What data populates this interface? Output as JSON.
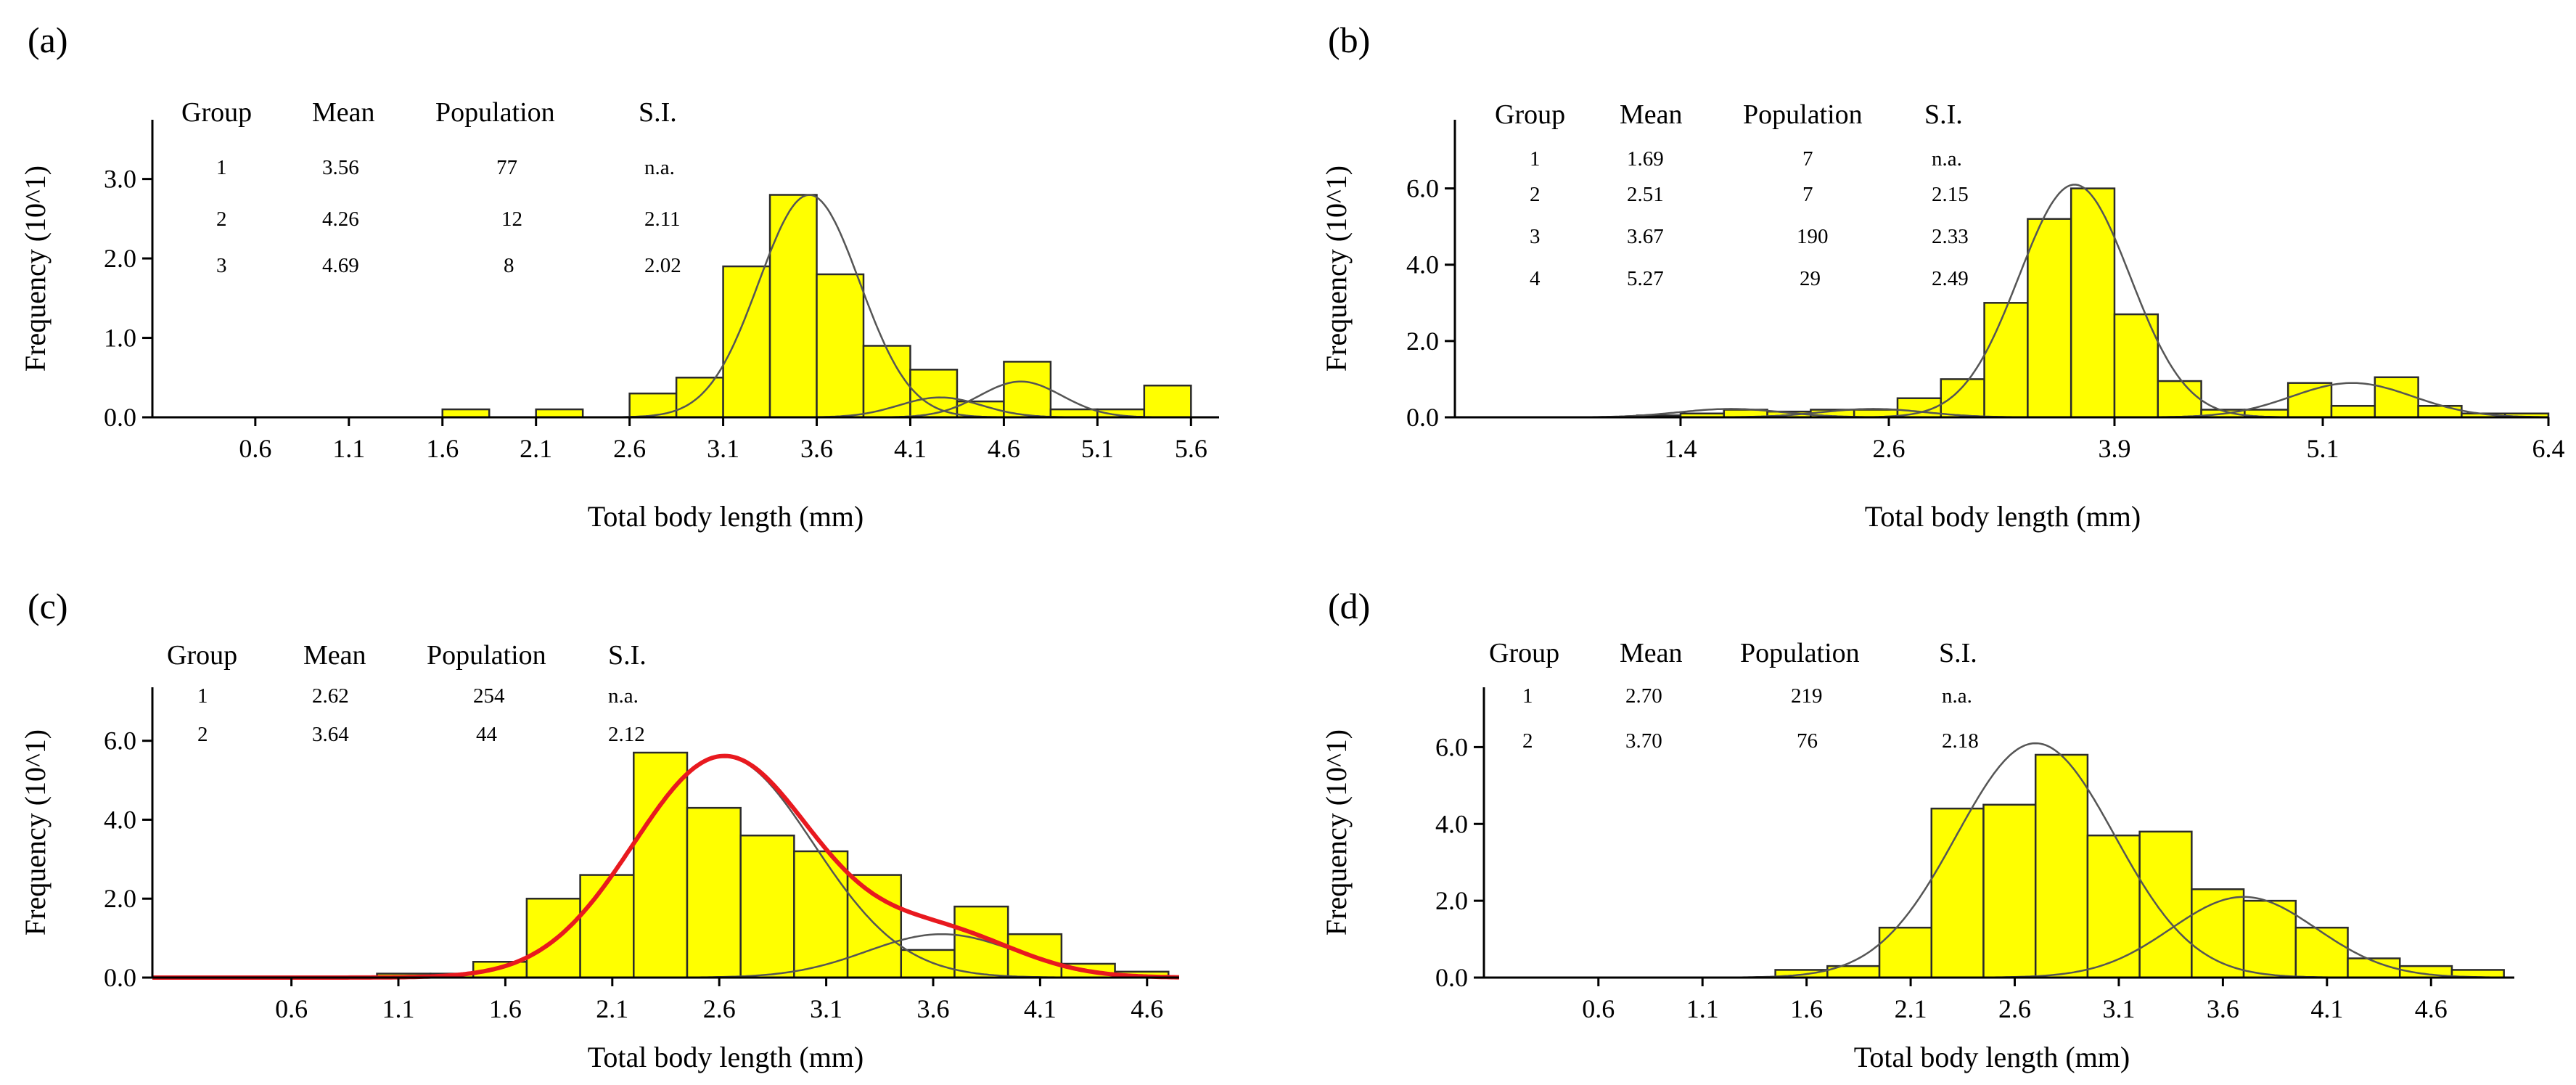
{
  "chart_data": [
    {
      "panel": "(a)",
      "type": "bar",
      "xlabel": "Total body length (mm)",
      "ylabel": "Frequency (10^1)",
      "xlim": [
        0.05,
        5.75
      ],
      "ylim": [
        0,
        3.7
      ],
      "x_ticks": [
        0.6,
        1.1,
        1.6,
        2.1,
        2.6,
        3.1,
        3.6,
        4.1,
        4.6,
        5.1,
        5.6
      ],
      "x_tick_labels": [
        "0.6",
        "1.1",
        "1.6",
        "2.1",
        "2.6",
        "3.1",
        "3.6",
        "4.1",
        "4.6",
        "5.1",
        "5.6"
      ],
      "y_ticks": [
        0,
        1,
        2,
        3
      ],
      "y_tick_labels": [
        "0.0",
        "1.0",
        "2.0",
        "3.0"
      ],
      "bin_width": 0.25,
      "bin_starts": [
        1.6,
        2.1,
        2.6,
        2.85,
        3.1,
        3.35,
        3.6,
        3.85,
        4.1,
        4.35,
        4.6,
        4.85,
        5.1,
        5.35
      ],
      "values": [
        0.1,
        0.1,
        0.3,
        0.5,
        1.9,
        2.8,
        1.8,
        0.9,
        0.6,
        0.2,
        0.7,
        0.1,
        0.1,
        0.4
      ],
      "table": {
        "headers": [
          "Group",
          "Mean",
          "Population",
          "S.I."
        ],
        "rows": [
          [
            "1",
            "3.56",
            "77",
            "n.a."
          ],
          [
            "2",
            "4.26",
            "12",
            "2.11"
          ],
          [
            "3",
            "4.69",
            "8",
            "2.02"
          ]
        ]
      },
      "components": [
        {
          "mean": 3.56,
          "sd": 0.27,
          "peak": 2.8,
          "color": "#555555"
        },
        {
          "mean": 4.26,
          "sd": 0.22,
          "peak": 0.25,
          "color": "#555555"
        },
        {
          "mean": 4.69,
          "sd": 0.22,
          "peak": 0.45,
          "color": "#555555"
        }
      ]
    },
    {
      "panel": "(b)",
      "type": "bar",
      "xlabel": "Total body length (mm)",
      "ylabel": "Frequency (10^1)",
      "xlim": [
        0.1,
        6.4
      ],
      "ylim": [
        0,
        7.8
      ],
      "x_ticks": [
        1.4,
        2.6,
        3.9,
        5.1,
        6.4
      ],
      "x_tick_labels": [
        "1.4",
        "2.6",
        "3.9",
        "5.1",
        "6.4"
      ],
      "y_ticks": [
        0,
        2,
        4,
        6
      ],
      "y_tick_labels": [
        "0.0",
        "2.0",
        "4.0",
        "6.0"
      ],
      "bin_width": 0.25,
      "bin_starts": [
        1.15,
        1.4,
        1.65,
        1.9,
        2.15,
        2.4,
        2.65,
        2.9,
        3.15,
        3.4,
        3.65,
        3.9,
        4.15,
        4.4,
        4.65,
        4.9,
        5.15,
        5.4,
        5.65,
        5.9,
        6.15
      ],
      "values": [
        0.05,
        0.1,
        0.2,
        0.15,
        0.2,
        0.2,
        0.5,
        1.0,
        3.0,
        5.2,
        6.0,
        2.7,
        0.95,
        0.2,
        0.2,
        0.9,
        0.3,
        1.05,
        0.3,
        0.1,
        0.1
      ],
      "table": {
        "headers": [
          "Group",
          "Mean",
          "Population",
          "S.I."
        ],
        "rows": [
          [
            "1",
            "1.69",
            "7",
            "n.a."
          ],
          [
            "2",
            "2.51",
            "7",
            "2.15"
          ],
          [
            "3",
            "3.67",
            "190",
            "2.33"
          ],
          [
            "4",
            "5.27",
            "29",
            "2.49"
          ]
        ]
      },
      "components": [
        {
          "mean": 1.69,
          "sd": 0.3,
          "peak": 0.22,
          "color": "#555555"
        },
        {
          "mean": 2.51,
          "sd": 0.3,
          "peak": 0.22,
          "color": "#555555"
        },
        {
          "mean": 3.67,
          "sd": 0.32,
          "peak": 6.1,
          "color": "#555555"
        },
        {
          "mean": 5.27,
          "sd": 0.35,
          "peak": 0.9,
          "color": "#555555"
        }
      ]
    },
    {
      "panel": "(c)",
      "type": "bar",
      "xlabel": "Total body length (mm)",
      "ylabel": "Frequency (10^1)",
      "xlim": [
        -0.05,
        4.75
      ],
      "ylim": [
        0,
        7.3
      ],
      "x_ticks": [
        0.6,
        1.1,
        1.6,
        2.1,
        2.6,
        3.1,
        3.6,
        4.1,
        4.6
      ],
      "x_tick_labels": [
        "0.6",
        "1.1",
        "1.6",
        "2.1",
        "2.6",
        "3.1",
        "3.6",
        "4.1",
        "4.6"
      ],
      "y_ticks": [
        0,
        2,
        4,
        6
      ],
      "y_tick_labels": [
        "0.0",
        "2.0",
        "4.0",
        "6.0"
      ],
      "bin_width": 0.25,
      "bin_starts": [
        1.0,
        1.25,
        1.45,
        1.7,
        1.95,
        2.2,
        2.45,
        2.7,
        2.95,
        3.2,
        3.45,
        3.7,
        3.95,
        4.2,
        4.45
      ],
      "values": [
        0.1,
        0.1,
        0.4,
        2.0,
        2.6,
        5.7,
        4.3,
        3.6,
        3.2,
        2.6,
        0.7,
        1.8,
        1.1,
        0.35,
        0.15
      ],
      "table": {
        "headers": [
          "Group",
          "Mean",
          "Population",
          "S.I."
        ],
        "rows": [
          [
            "1",
            "2.62",
            "254",
            "n.a."
          ],
          [
            "2",
            "3.64",
            "44",
            "2.12"
          ]
        ]
      },
      "components": [
        {
          "mean": 2.62,
          "sd": 0.42,
          "peak": 5.6,
          "color": "#555555"
        },
        {
          "mean": 3.64,
          "sd": 0.35,
          "peak": 1.1,
          "color": "#555555"
        }
      ],
      "overlay_curve": {
        "color": "#e8191f",
        "description": "total fitted distribution"
      }
    },
    {
      "panel": "(d)",
      "type": "bar",
      "xlabel": "Total body length (mm)",
      "ylabel": "Frequency (10^1)",
      "xlim": [
        0.05,
        5.0
      ],
      "ylim": [
        0,
        7.5
      ],
      "x_ticks": [
        0.6,
        1.1,
        1.6,
        2.1,
        2.6,
        3.1,
        3.6,
        4.1,
        4.6
      ],
      "x_tick_labels": [
        "0.6",
        "1.1",
        "1.6",
        "2.1",
        "2.6",
        "3.1",
        "3.6",
        "4.1",
        "4.6"
      ],
      "y_ticks": [
        0,
        2,
        4,
        6
      ],
      "y_tick_labels": [
        "0.0",
        "2.0",
        "4.0",
        "6.0"
      ],
      "bin_width": 0.25,
      "bin_starts": [
        1.45,
        1.7,
        1.95,
        2.2,
        2.45,
        2.7,
        2.95,
        3.2,
        3.45,
        3.7,
        3.95,
        4.2,
        4.45,
        4.7
      ],
      "values": [
        0.2,
        0.3,
        1.3,
        4.4,
        4.5,
        5.8,
        3.7,
        3.8,
        2.3,
        2.0,
        1.3,
        0.5,
        0.3,
        0.2
      ],
      "table": {
        "headers": [
          "Group",
          "Mean",
          "Population",
          "S.I."
        ],
        "rows": [
          [
            "1",
            "2.70",
            "219",
            "n.a."
          ],
          [
            "2",
            "3.70",
            "76",
            "2.18"
          ]
        ]
      },
      "components": [
        {
          "mean": 2.7,
          "sd": 0.38,
          "peak": 6.1,
          "color": "#555555"
        },
        {
          "mean": 3.7,
          "sd": 0.35,
          "peak": 2.1,
          "color": "#555555"
        }
      ]
    }
  ],
  "style": {
    "bar_fill": "#ffff00",
    "bar_stroke": "#2b2b2b",
    "curve_color": "#555555",
    "axis_color": "#000000"
  }
}
